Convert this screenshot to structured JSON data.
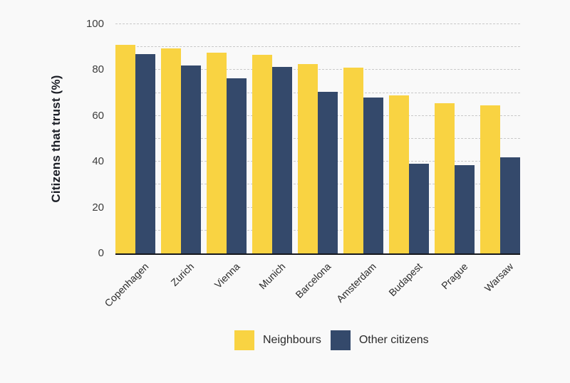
{
  "chart_data": {
    "type": "bar",
    "title": "",
    "xlabel": "",
    "ylabel": "Citizens that trust (%)",
    "categories": [
      "Copenhagen",
      "Zurich",
      "Vienna",
      "Munich",
      "Barcelona",
      "Amsterdam",
      "Budapest",
      "Prague",
      "Warsaw"
    ],
    "series": [
      {
        "name": "Neighbours",
        "color": "#F9D342",
        "values": [
          91,
          89.5,
          87.5,
          86.5,
          82.5,
          81,
          69,
          65.5,
          64.5
        ]
      },
      {
        "name": "Other citizens",
        "color": "#34496B",
        "values": [
          87,
          82,
          76.5,
          81.5,
          70.5,
          68,
          39,
          38.5,
          42
        ]
      }
    ],
    "ylim": [
      0,
      100
    ],
    "yticks": [
      0,
      20,
      40,
      60,
      80,
      100
    ],
    "gridlines": {
      "orientation": "horizontal",
      "style": "dashed",
      "interval": 10,
      "color": "#c9c9c9"
    },
    "legend_position": "bottom-center"
  },
  "colors": {
    "background": "#f9f9f9",
    "axis_line": "#15171c",
    "tick_text": "#3d3d3d",
    "label_text": "#2b2b2b",
    "y_title_text": "#1b1e26"
  }
}
